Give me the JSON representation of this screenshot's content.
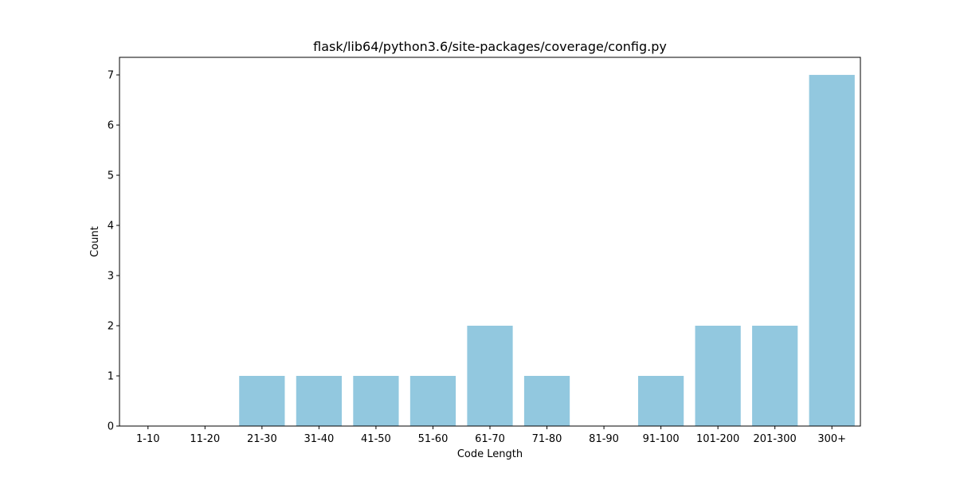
{
  "chart_data": {
    "type": "bar",
    "title": "flask/lib64/python3.6/site-packages/coverage/config.py",
    "xlabel": "Code Length",
    "ylabel": "Count",
    "categories": [
      "1-10",
      "11-20",
      "21-30",
      "31-40",
      "41-50",
      "51-60",
      "61-70",
      "71-80",
      "81-90",
      "91-100",
      "101-200",
      "201-300",
      "300+"
    ],
    "values": [
      0,
      0,
      1,
      1,
      1,
      1,
      2,
      1,
      0,
      1,
      2,
      2,
      7
    ],
    "ylim": [
      0,
      7.35
    ],
    "yticks": [
      0,
      1,
      2,
      3,
      4,
      5,
      6,
      7
    ],
    "bar_color": "#92c8df",
    "grid": false,
    "legend": "none"
  }
}
